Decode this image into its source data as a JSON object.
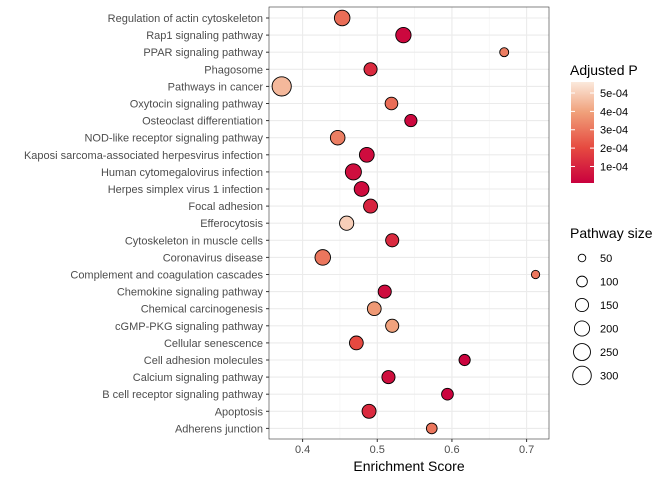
{
  "chart_data": {
    "type": "scatter",
    "xlabel": "Enrichment Score",
    "ylabel": "",
    "xlim": [
      0.355,
      0.73
    ],
    "x_ticks": [
      0.4,
      0.5,
      0.6,
      0.7
    ],
    "x_tick_labels": [
      "0.4",
      "0.5",
      "0.6",
      "0.7"
    ],
    "grid": true,
    "categories": [
      "Regulation of actin cytoskeleton",
      "Rap1 signaling pathway",
      "PPAR signaling pathway",
      "Phagosome",
      "Pathways in cancer",
      "Oxytocin signaling pathway",
      "Osteoclast differentiation",
      "NOD-like receptor signaling pathway",
      "Kaposi sarcoma-associated herpesvirus infection",
      "Human cytomegalovirus infection",
      "Herpes simplex virus 1 infection",
      "Focal adhesion",
      "Efferocytosis",
      "Cytoskeleton in muscle cells",
      "Coronavirus disease",
      "Complement and coagulation cascades",
      "Chemokine signaling pathway",
      "Chemical carcinogenesis",
      "cGMP-PKG signaling pathway",
      "Cellular senescence",
      "Cell adhesion molecules",
      "Calcium signaling pathway",
      "B cell receptor signaling pathway",
      "Apoptosis",
      "Adherens junction"
    ],
    "points": [
      {
        "term": "Regulation of actin cytoskeleton",
        "score": 0.453,
        "padj": 0.00028,
        "size": 210
      },
      {
        "term": "Rap1 signaling pathway",
        "score": 0.535,
        "padj": 3e-05,
        "size": 205
      },
      {
        "term": "PPAR signaling pathway",
        "score": 0.67,
        "padj": 0.00032,
        "size": 70
      },
      {
        "term": "Phagosome",
        "score": 0.491,
        "padj": 0.00012,
        "size": 150
      },
      {
        "term": "Pathways in cancer",
        "score": 0.372,
        "padj": 0.00045,
        "size": 320
      },
      {
        "term": "Oxytocin signaling pathway",
        "score": 0.519,
        "padj": 0.00028,
        "size": 140
      },
      {
        "term": "Osteoclast differentiation",
        "score": 0.545,
        "padj": 3e-05,
        "size": 130
      },
      {
        "term": "NOD-like receptor signaling pathway",
        "score": 0.447,
        "padj": 0.00032,
        "size": 185
      },
      {
        "term": "Kaposi sarcoma-associated herpesvirus infection",
        "score": 0.486,
        "padj": 4e-05,
        "size": 190
      },
      {
        "term": "Human cytomegalovirus infection",
        "score": 0.468,
        "padj": 5e-05,
        "size": 225
      },
      {
        "term": "Herpes simplex virus 1 infection",
        "score": 0.479,
        "padj": 4e-05,
        "size": 190
      },
      {
        "term": "Focal adhesion",
        "score": 0.491,
        "padj": 0.0001,
        "size": 170
      },
      {
        "term": "Efferocytosis",
        "score": 0.459,
        "padj": 0.0005,
        "size": 175
      },
      {
        "term": "Cytoskeleton in muscle cells",
        "score": 0.52,
        "padj": 0.00012,
        "size": 150
      },
      {
        "term": "Coronavirus disease",
        "score": 0.427,
        "padj": 0.0003,
        "size": 210
      },
      {
        "term": "Complement and coagulation cascades",
        "score": 0.712,
        "padj": 0.0003,
        "size": 60
      },
      {
        "term": "Chemokine signaling pathway",
        "score": 0.51,
        "padj": 4e-05,
        "size": 150
      },
      {
        "term": "Chemical carcinogenesis",
        "score": 0.496,
        "padj": 0.00038,
        "size": 165
      },
      {
        "term": "cGMP-PKG signaling pathway",
        "score": 0.52,
        "padj": 0.0004,
        "size": 150
      },
      {
        "term": "Cellular senescence",
        "score": 0.472,
        "padj": 0.0002,
        "size": 165
      },
      {
        "term": "Cell adhesion molecules",
        "score": 0.617,
        "padj": 2e-05,
        "size": 110
      },
      {
        "term": "Calcium signaling pathway",
        "score": 0.515,
        "padj": 5e-05,
        "size": 150
      },
      {
        "term": "B cell receptor signaling pathway",
        "score": 0.594,
        "padj": 2e-05,
        "size": 120
      },
      {
        "term": "Apoptosis",
        "score": 0.489,
        "padj": 0.00012,
        "size": 170
      },
      {
        "term": "Adherens junction",
        "score": 0.573,
        "padj": 0.0003,
        "size": 100
      }
    ],
    "color_legend": {
      "title": "Adjusted P",
      "range": [
        1e-05,
        0.00056
      ],
      "ticks": [
        0.0001,
        0.0002,
        0.0003,
        0.0004,
        0.0005
      ],
      "tick_labels": [
        "1e-04",
        "2e-04",
        "3e-04",
        "4e-04",
        "5e-04"
      ],
      "colors": [
        "#c9003e",
        "#e64a40",
        "#f0a07a",
        "#fbe9dc"
      ]
    },
    "size_legend": {
      "title": "Pathway size",
      "values": [
        50,
        100,
        150,
        200,
        250,
        300
      ],
      "labels": [
        "50",
        "100",
        "150",
        "200",
        "250",
        "300"
      ]
    },
    "legend_position": "right",
    "colors": {
      "panel_background": "#ffffff",
      "grid": "#ebebeb",
      "point_stroke": "#000000"
    }
  }
}
